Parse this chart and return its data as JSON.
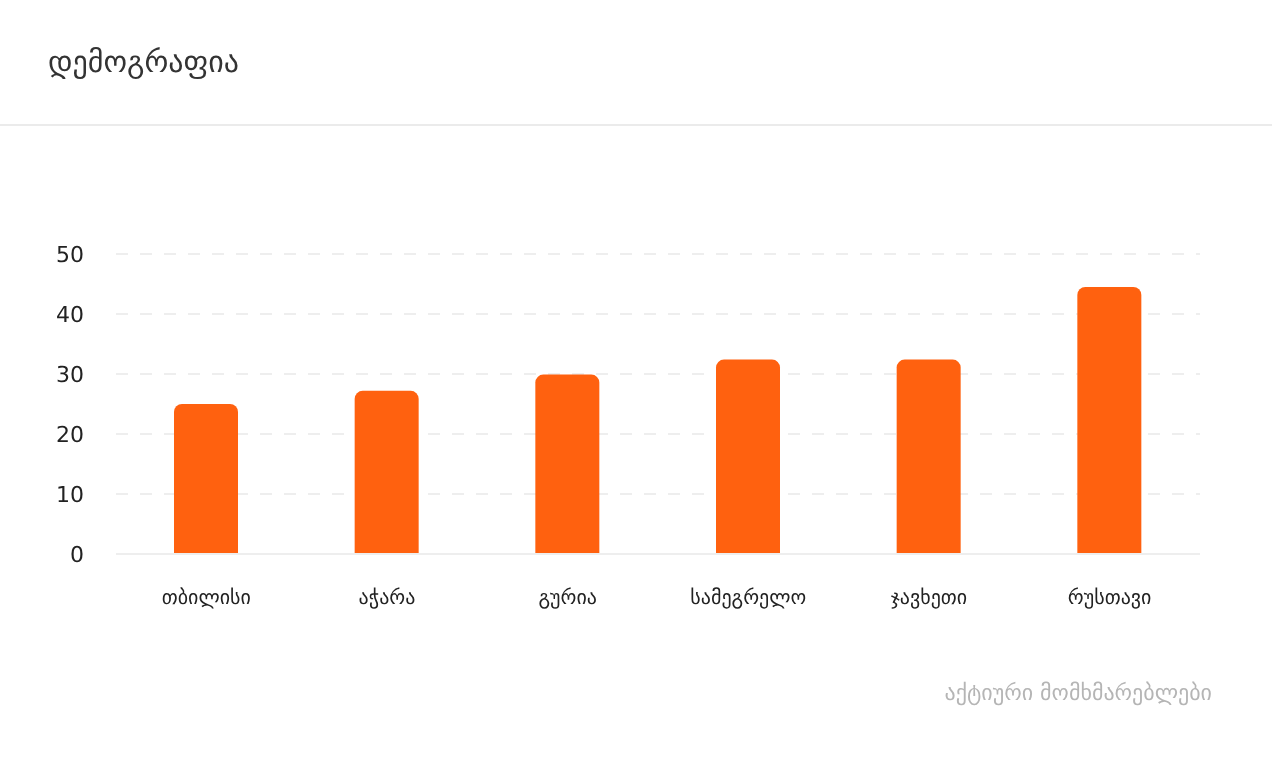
{
  "chart_data": {
    "type": "bar",
    "title": "დემოგრაფია",
    "categories": [
      "თბილისი",
      "აჭარა",
      "გურია",
      "სამეგრელო",
      "ჯავხეთი",
      "რუსთავი"
    ],
    "values": [
      25,
      27.2,
      29.9,
      32.4,
      32.4,
      44.5
    ],
    "color": "#ff610f",
    "ylim": [
      0,
      50
    ],
    "yticks": [
      0,
      10,
      20,
      30,
      40,
      50
    ],
    "grid": "y",
    "annotations": [
      "აქტიური მომხმარებლები"
    ]
  }
}
